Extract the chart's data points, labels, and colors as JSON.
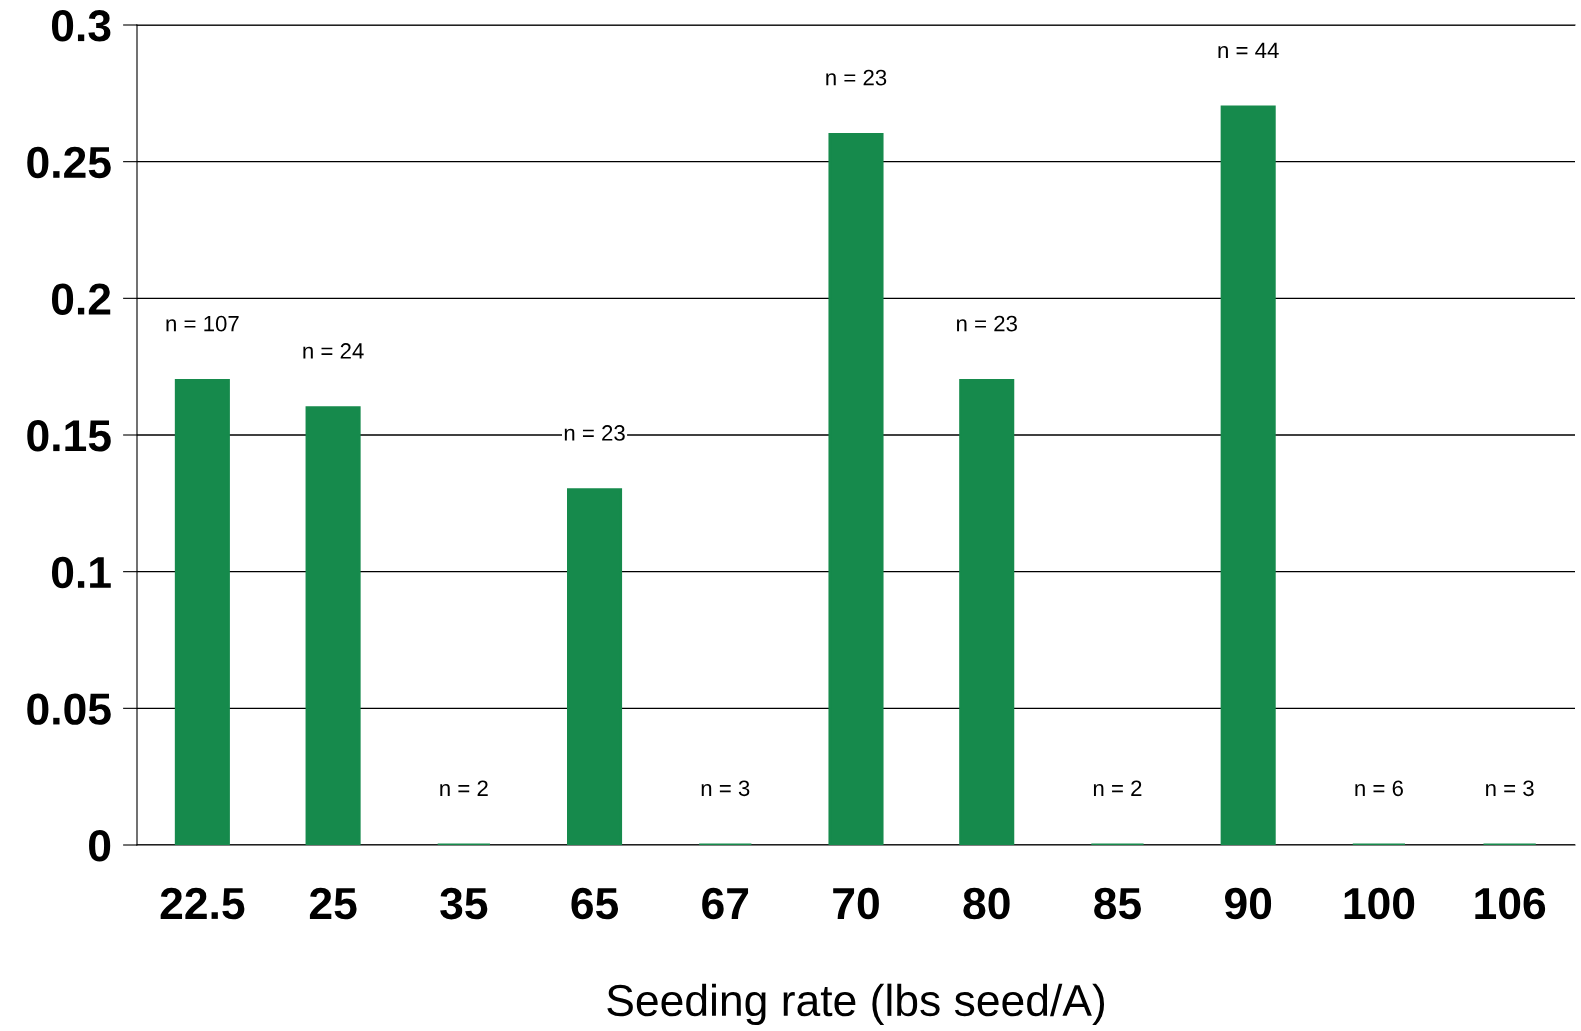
{
  "chart_data": {
    "type": "bar",
    "xlabel": "Seeding rate (lbs seed/A)",
    "categories": [
      "22.5",
      "25",
      "35",
      "65",
      "67",
      "70",
      "80",
      "85",
      "90",
      "100",
      "106"
    ],
    "values": [
      0.17,
      0.16,
      0,
      0.13,
      0,
      0.26,
      0.17,
      0,
      0.27,
      0,
      0
    ],
    "color": "#168a4c",
    "ylim": [
      0,
      0.3
    ],
    "yticks": [
      0,
      0.05,
      0.1,
      0.15,
      0.2,
      0.25,
      0.3
    ],
    "grid": "y",
    "legend": false,
    "annotations": [
      {
        "text": "n = 107",
        "x": "22.5",
        "y": 0.17
      },
      {
        "text": "n = 24",
        "x": "25",
        "y": 0.16
      },
      {
        "text": "n = 2",
        "x": "35",
        "y": 0
      },
      {
        "text": "n = 23",
        "x": "65",
        "y": 0.13
      },
      {
        "text": "n = 3",
        "x": "67",
        "y": 0
      },
      {
        "text": "n = 23",
        "x": "70",
        "y": 0.26
      },
      {
        "text": "n = 23",
        "x": "80",
        "y": 0.17
      },
      {
        "text": "n = 2",
        "x": "85",
        "y": 0
      },
      {
        "text": "n = 44",
        "x": "90",
        "y": 0.27
      },
      {
        "text": "n = 6",
        "x": "100",
        "y": 0
      },
      {
        "text": "n = 3",
        "x": "106",
        "y": 0
      }
    ]
  }
}
